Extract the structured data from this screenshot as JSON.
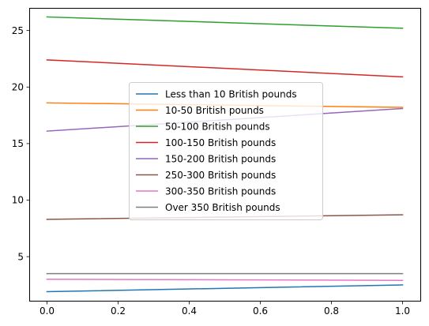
{
  "chart_data": {
    "type": "line",
    "title": "",
    "xlabel": "",
    "ylabel": "",
    "x": [
      0.0,
      1.0
    ],
    "xlim": [
      -0.05,
      1.05
    ],
    "ylim": [
      1.1,
      27.0
    ],
    "xticks": [
      0.0,
      0.2,
      0.4,
      0.6,
      0.8,
      1.0
    ],
    "xtick_labels": [
      "0.0",
      "0.2",
      "0.4",
      "0.6",
      "0.8",
      "1.0"
    ],
    "yticks": [
      5,
      10,
      15,
      20,
      25
    ],
    "ytick_labels": [
      "5",
      "10",
      "15",
      "20",
      "25"
    ],
    "grid": false,
    "legend_position": "center",
    "series": [
      {
        "name": "Less than 10 British pounds",
        "color": "#1f77b4",
        "values": [
          1.9,
          2.5
        ]
      },
      {
        "name": "10-50 British pounds",
        "color": "#ff7f0e",
        "values": [
          18.6,
          18.2
        ]
      },
      {
        "name": "50-100 British pounds",
        "color": "#2ca02c",
        "values": [
          26.2,
          25.2
        ]
      },
      {
        "name": "100-150 British pounds",
        "color": "#d62728",
        "values": [
          22.4,
          20.9
        ]
      },
      {
        "name": "150-200 British pounds",
        "color": "#9467bd",
        "values": [
          16.1,
          18.1
        ]
      },
      {
        "name": "250-300 British pounds",
        "color": "#8c564b",
        "values": [
          8.3,
          8.7
        ]
      },
      {
        "name": "300-350 British pounds",
        "color": "#e377c2",
        "values": [
          3.0,
          2.9
        ]
      },
      {
        "name": "Over 350 British pounds",
        "color": "#7f7f7f",
        "values": [
          3.5,
          3.5
        ]
      }
    ]
  }
}
